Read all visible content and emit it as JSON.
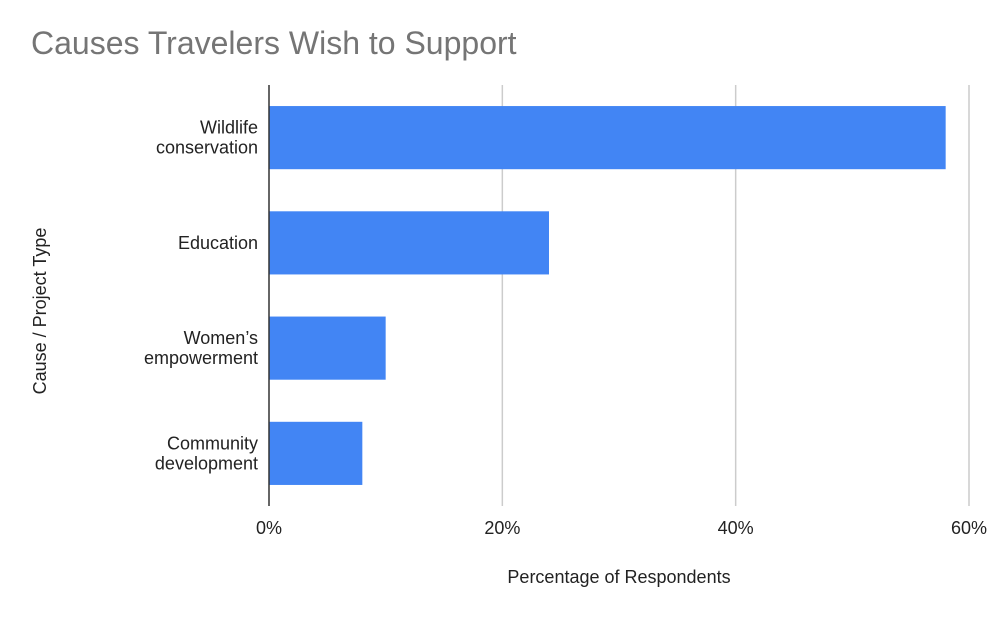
{
  "chart_data": {
    "type": "bar",
    "orientation": "horizontal",
    "title": "Causes Travelers Wish to Support",
    "xlabel": "Percentage of Respondents",
    "ylabel": "Cause / Project Type",
    "categories": [
      [
        "Wildlife",
        "conservation"
      ],
      [
        "Education"
      ],
      [
        "Women’s",
        "empowerment"
      ],
      [
        "Community",
        "development"
      ]
    ],
    "values": [
      58,
      24,
      10,
      8
    ],
    "xlim": [
      0,
      60
    ],
    "xticks": [
      0,
      20,
      40,
      60
    ],
    "xtick_labels": [
      "0%",
      "20%",
      "40%",
      "60%"
    ],
    "grid": true,
    "legend": "none",
    "bar_color": "#4285F4",
    "grid_color": "#cccccc",
    "axis_color": "#333333"
  }
}
